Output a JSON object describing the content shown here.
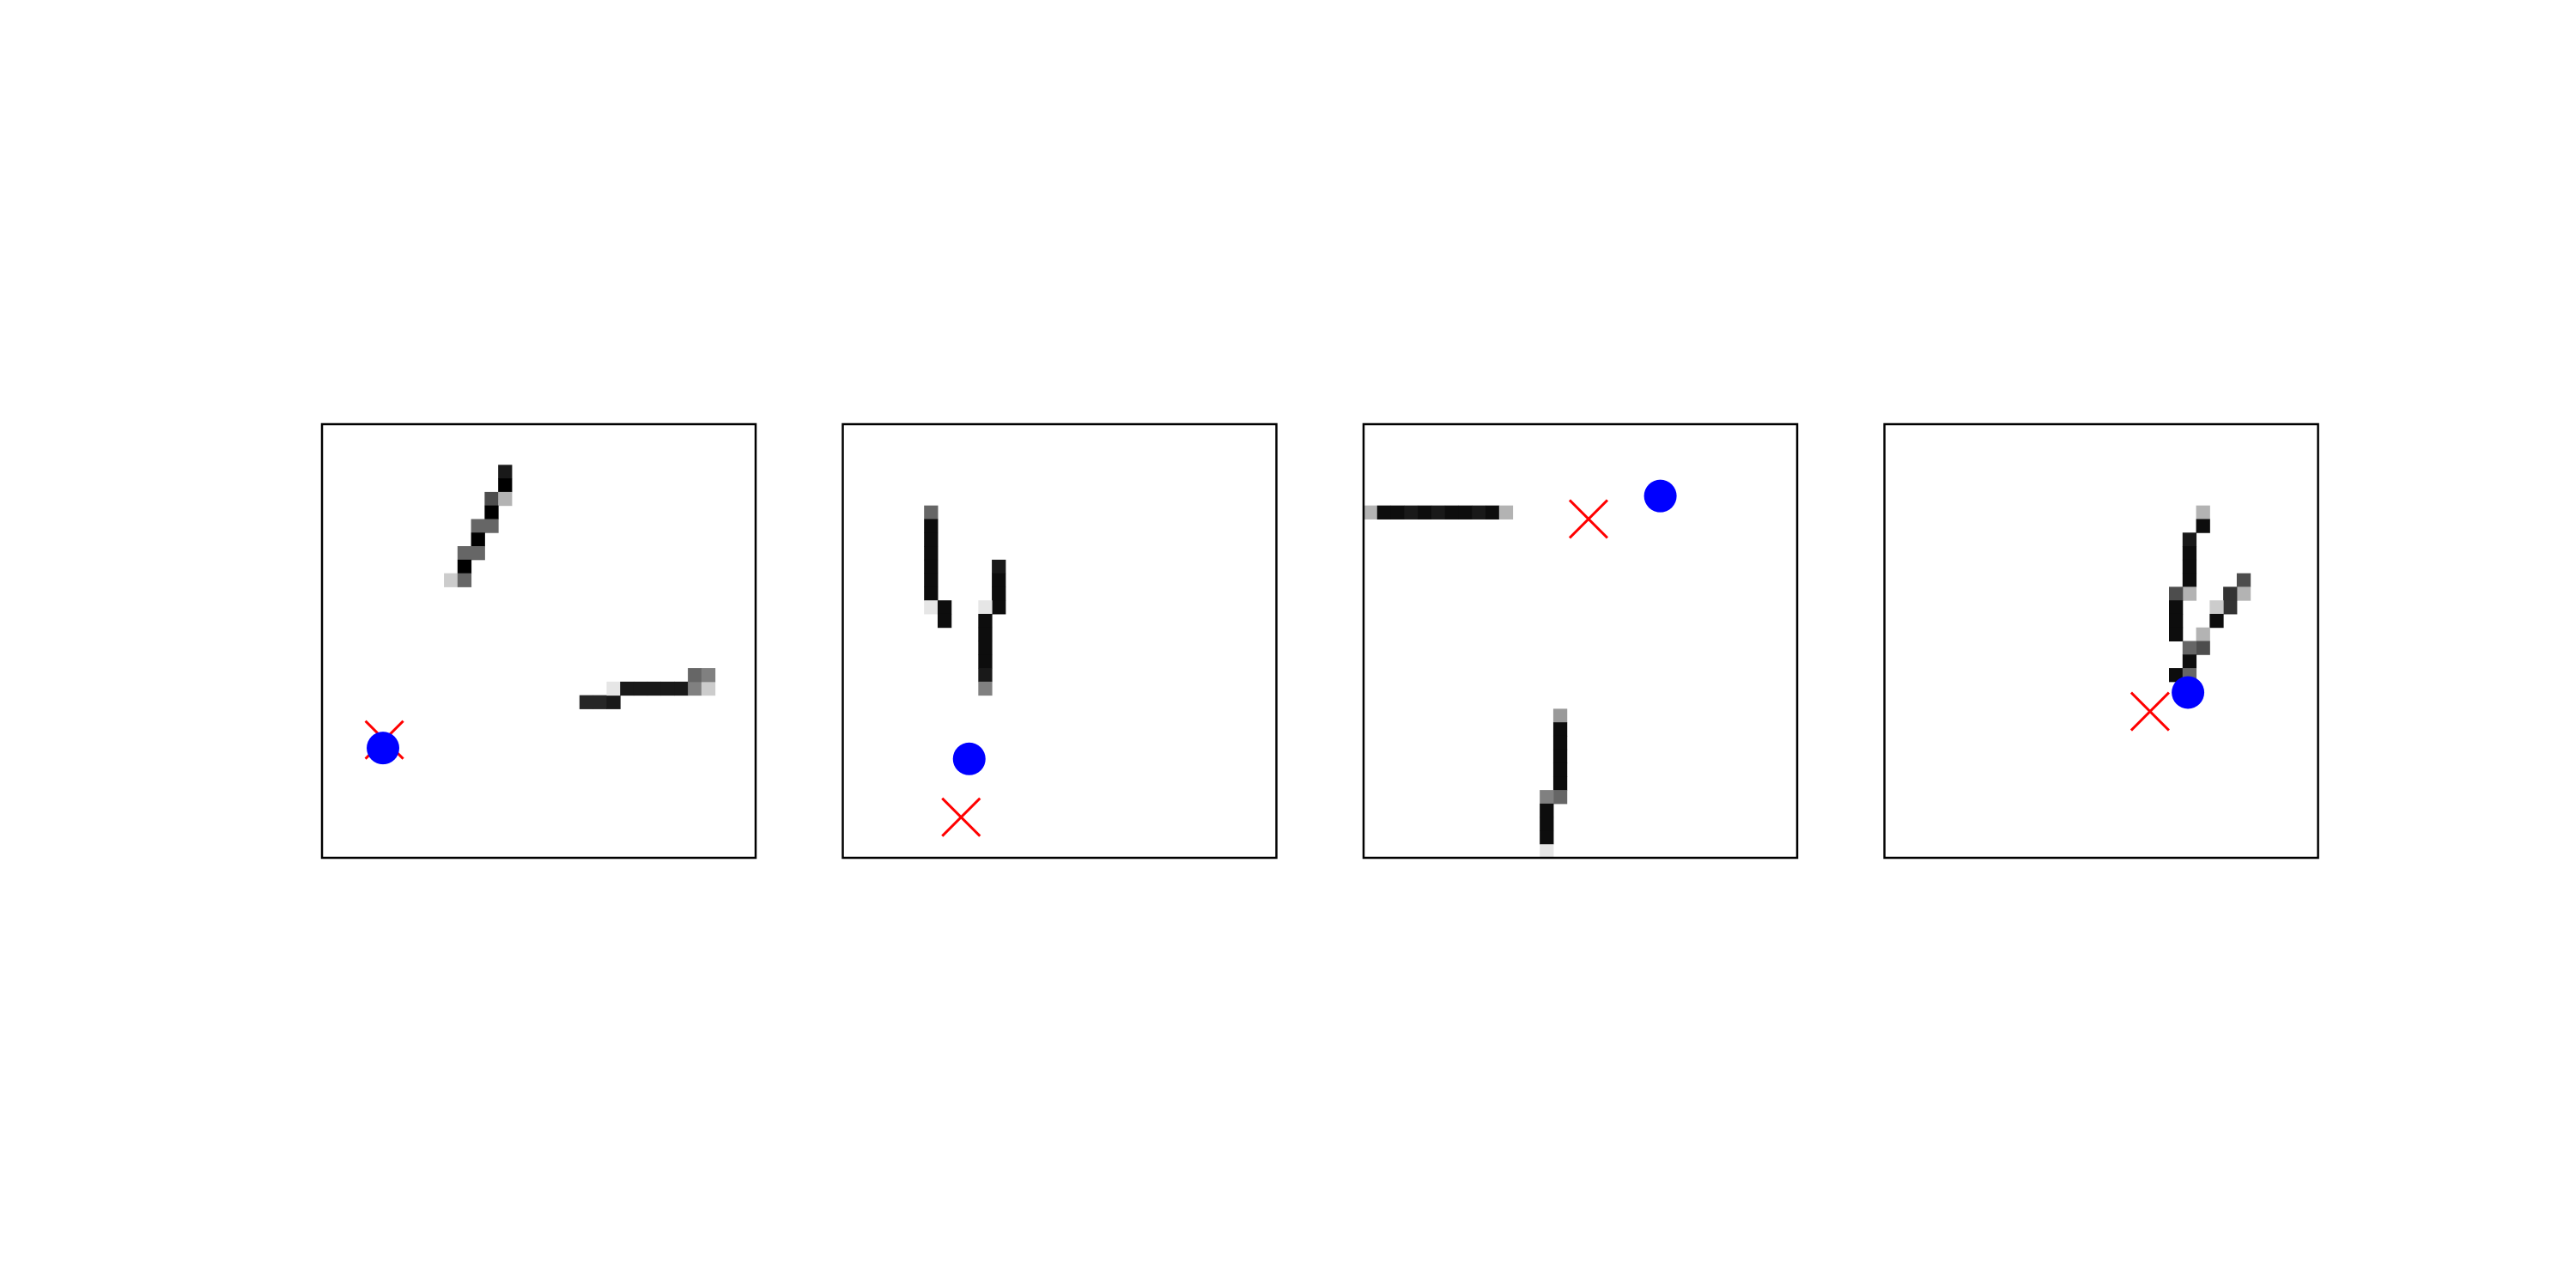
{
  "chart_data": [
    {
      "type": "image",
      "xlim": [
        0,
        32
      ],
      "ylim": [
        0,
        32
      ],
      "pixels": [
        [
          13,
          3,
          0.9
        ],
        [
          13,
          4,
          1
        ],
        [
          12,
          5,
          0.7
        ],
        [
          13,
          5,
          0.3
        ],
        [
          12,
          6,
          1
        ],
        [
          11,
          7,
          0.6
        ],
        [
          12,
          7,
          0.6
        ],
        [
          11,
          8,
          1
        ],
        [
          10,
          9,
          0.6
        ],
        [
          11,
          9,
          0.6
        ],
        [
          10,
          10,
          1
        ],
        [
          9,
          11,
          0.2
        ],
        [
          10,
          11,
          0.6
        ],
        [
          19,
          20,
          0.85
        ],
        [
          20,
          20,
          0.85
        ],
        [
          21,
          20,
          0.9
        ],
        [
          21,
          19,
          0.1
        ],
        [
          22,
          19,
          0.9
        ],
        [
          23,
          19,
          0.9
        ],
        [
          24,
          19,
          0.9
        ],
        [
          25,
          19,
          0.9
        ],
        [
          26,
          19,
          0.9
        ],
        [
          27,
          19,
          0.5
        ],
        [
          28,
          19,
          0.2
        ],
        [
          27,
          18,
          0.6
        ],
        [
          28,
          18,
          0.5
        ]
      ],
      "dot": {
        "x": 4.5,
        "y": 23.9,
        "color": "blue"
      },
      "cross": {
        "x": 4.6,
        "y": 23.3,
        "color": "red"
      }
    },
    {
      "type": "image",
      "xlim": [
        0,
        32
      ],
      "ylim": [
        0,
        32
      ],
      "pixels": [
        [
          6,
          6,
          0.6
        ],
        [
          6,
          7,
          0.95
        ],
        [
          6,
          8,
          0.95
        ],
        [
          6,
          9,
          0.95
        ],
        [
          6,
          10,
          0.95
        ],
        [
          6,
          11,
          0.95
        ],
        [
          6,
          12,
          0.95
        ],
        [
          6,
          13,
          0.1
        ],
        [
          7,
          13,
          0.95
        ],
        [
          7,
          14,
          0.95
        ],
        [
          11,
          10,
          0.9
        ],
        [
          11,
          11,
          0.95
        ],
        [
          11,
          12,
          0.95
        ],
        [
          11,
          13,
          0.95
        ],
        [
          10,
          13,
          0.1
        ],
        [
          10,
          14,
          0.95
        ],
        [
          10,
          15,
          0.95
        ],
        [
          10,
          16,
          0.95
        ],
        [
          10,
          17,
          0.95
        ],
        [
          10,
          18,
          0.9
        ],
        [
          10,
          19,
          0.5
        ]
      ],
      "dot": {
        "x": 9.33,
        "y": 24.7,
        "color": "blue"
      },
      "cross": {
        "x": 8.73,
        "y": 29.0,
        "color": "red"
      }
    },
    {
      "type": "image",
      "xlim": [
        0,
        32
      ],
      "ylim": [
        0,
        32
      ],
      "pixels": [
        [
          0,
          6,
          0.3
        ],
        [
          1,
          6,
          0.95
        ],
        [
          2,
          6,
          0.95
        ],
        [
          3,
          6,
          0.9
        ],
        [
          4,
          6,
          0.95
        ],
        [
          5,
          6,
          0.9
        ],
        [
          6,
          6,
          0.95
        ],
        [
          7,
          6,
          0.95
        ],
        [
          8,
          6,
          0.9
        ],
        [
          9,
          6,
          0.95
        ],
        [
          10,
          6,
          0.3
        ],
        [
          14,
          21,
          0.4
        ],
        [
          14,
          22,
          0.95
        ],
        [
          14,
          23,
          0.95
        ],
        [
          14,
          24,
          0.95
        ],
        [
          14,
          25,
          0.95
        ],
        [
          14,
          26,
          0.95
        ],
        [
          14,
          27,
          0.6
        ],
        [
          13,
          27,
          0.5
        ],
        [
          13,
          28,
          0.95
        ],
        [
          13,
          29,
          0.95
        ],
        [
          13,
          30,
          0.95
        ],
        [
          13,
          31,
          0.1
        ]
      ],
      "dot": {
        "x": 21.9,
        "y": 5.3,
        "color": "blue"
      },
      "cross": {
        "x": 16.6,
        "y": 7.0,
        "color": "red"
      }
    },
    {
      "type": "image",
      "xlim": [
        0,
        32
      ],
      "ylim": [
        0,
        32
      ],
      "pixels": [
        [
          23,
          6,
          0.3
        ],
        [
          23,
          7,
          0.95
        ],
        [
          22,
          8,
          0.9
        ],
        [
          22,
          9,
          0.95
        ],
        [
          22,
          10,
          0.95
        ],
        [
          22,
          11,
          0.95
        ],
        [
          22,
          12,
          0.3
        ],
        [
          21,
          12,
          0.7
        ],
        [
          21,
          13,
          0.95
        ],
        [
          21,
          14,
          0.95
        ],
        [
          21,
          15,
          0.95
        ],
        [
          26,
          11,
          0.7
        ],
        [
          26,
          12,
          0.3
        ],
        [
          25,
          12,
          0.8
        ],
        [
          25,
          13,
          0.8
        ],
        [
          24,
          13,
          0.2
        ],
        [
          24,
          14,
          0.95
        ],
        [
          23,
          15,
          0.3
        ],
        [
          23,
          16,
          0.7
        ],
        [
          22,
          16,
          0.6
        ],
        [
          22,
          17,
          0.95
        ],
        [
          21,
          18,
          0.95
        ],
        [
          22,
          18,
          0.6
        ]
      ],
      "dot": {
        "x": 22.4,
        "y": 19.8,
        "color": "blue"
      },
      "cross": {
        "x": 19.6,
        "y": 21.2,
        "color": "red"
      }
    }
  ]
}
